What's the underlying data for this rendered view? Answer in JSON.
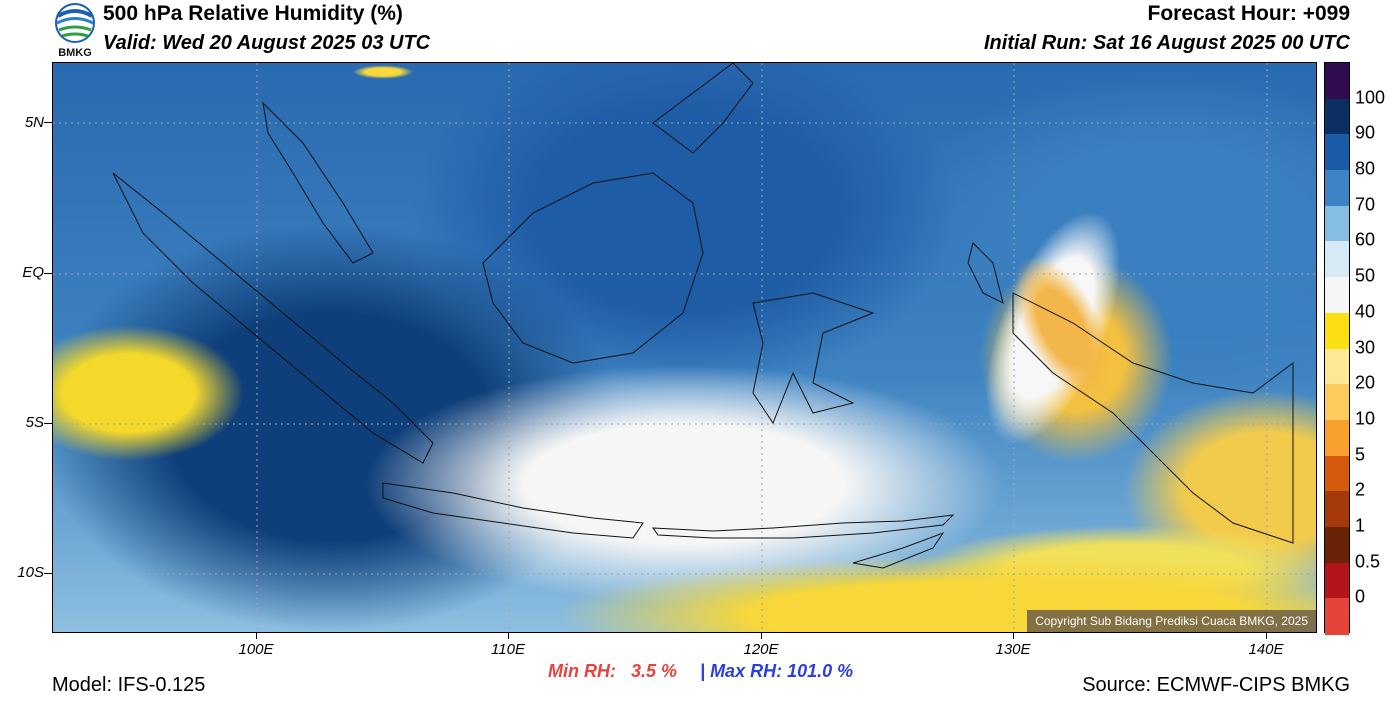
{
  "header": {
    "title": "500 hPa Relative Humidity (%)",
    "valid": "Valid: Wed 20 August 2025 03 UTC",
    "forecast_hour": "Forecast Hour: +099",
    "initial_run": "Initial Run: Sat 16 August 2025 00 UTC",
    "logo_text": "BMKG"
  },
  "map": {
    "lat_labels": [
      "5N",
      "EQ",
      "5S",
      "10S"
    ],
    "lon_labels": [
      "100E",
      "110E",
      "120E",
      "130E",
      "140E"
    ],
    "copyright": "Copyright Sub Bidang Prediksi Cuaca BMKG, 2025"
  },
  "colorbar": {
    "labels": [
      "100",
      "90",
      "80",
      "70",
      "60",
      "50",
      "40",
      "30",
      "20",
      "10",
      "5",
      "2",
      "1",
      "0.5",
      "0"
    ],
    "colors": [
      "#300b50",
      "#0c2f63",
      "#1c5ba8",
      "#3c84c6",
      "#86bde2",
      "#d7e9f5",
      "#f6f6f6",
      "#fbdf13",
      "#fde896",
      "#fdcb5e",
      "#f9a02e",
      "#d65a0c",
      "#a6390a",
      "#6b2307",
      "#b3141a",
      "#e6433a"
    ]
  },
  "footer": {
    "min_label": "Min RH:",
    "min_value": "3.5 %",
    "separator": "|",
    "max_label": "Max RH: 101.0 %",
    "model": "Model: IFS-0.125",
    "source": "Source: ECMWF-CIPS BMKG"
  }
}
